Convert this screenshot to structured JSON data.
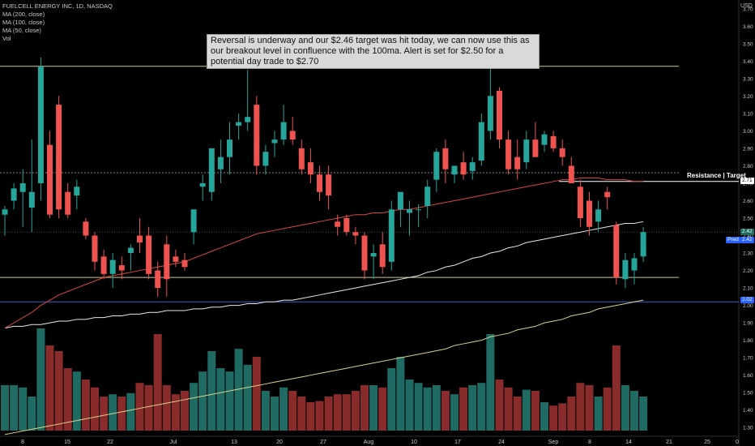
{
  "header": {
    "symbol_line": "FUELCELL ENERGY INC, 1D, NASDAQ",
    "indicators": [
      "MA (200, close)",
      "MA (100, close)",
      "MA (50, close)",
      "Vol"
    ],
    "currency": "USD"
  },
  "annotation": {
    "text": "Reversal is underway and our $2.46 target was hit today, we can now use this as our breakout level in confluence with the 100ma.  Alert is set for $2.50 for a potential day trade to $2.70"
  },
  "resistance_label": "Resistance | Target",
  "price_tags": {
    "resistance": "2.71",
    "current_a": "2.42",
    "current_b": "2.42",
    "pred": "Pred",
    "support": "2.02"
  },
  "colors": {
    "up": "#26a69a",
    "down": "#ef5350",
    "up_vol": "#1f6b63",
    "down_vol": "#8a2b2b",
    "ma50": "#d8473f",
    "ma100": "#e8e8e8",
    "ma200": "#d8d28a",
    "level_top": "#cfc77a",
    "level_support": "#cfc77a",
    "level_blue": "#3b62c4"
  },
  "chart_data": {
    "type": "candlestick",
    "title": "FUELCELL ENERGY INC, 1D, NASDAQ",
    "ylim": [
      1.25,
      3.75
    ],
    "y_ticks": [
      1.3,
      1.4,
      1.5,
      1.6,
      1.7,
      1.8,
      1.9,
      2.0,
      2.1,
      2.2,
      2.3,
      2.4,
      2.5,
      2.6,
      2.7,
      2.8,
      2.9,
      3.0,
      3.1,
      3.2,
      3.3,
      3.4,
      3.5,
      3.6,
      3.7
    ],
    "x_labels": [
      "8",
      "15",
      "22",
      "Jul",
      "13",
      "20",
      "27",
      "Aug",
      "10",
      "17",
      "24",
      "Sep",
      "8",
      "14",
      "21",
      "25",
      "0"
    ],
    "levels": {
      "top": 3.37,
      "resistance": 2.71,
      "resistance_dotted": 2.76,
      "support": 2.16,
      "blue": 2.02
    },
    "candles": [
      {
        "o": 2.52,
        "h": 2.57,
        "l": 2.4,
        "c": 2.55
      },
      {
        "o": 2.6,
        "h": 2.7,
        "l": 2.55,
        "c": 2.67
      },
      {
        "o": 2.65,
        "h": 2.78,
        "l": 2.45,
        "c": 2.7
      },
      {
        "o": 2.56,
        "h": 2.95,
        "l": 2.42,
        "c": 2.65
      },
      {
        "o": 2.7,
        "h": 3.42,
        "l": 2.6,
        "c": 3.37
      },
      {
        "o": 2.92,
        "h": 3.0,
        "l": 2.5,
        "c": 2.52
      },
      {
        "o": 3.15,
        "h": 3.2,
        "l": 2.5,
        "c": 2.55
      },
      {
        "o": 2.65,
        "h": 2.7,
        "l": 2.5,
        "c": 2.52
      },
      {
        "o": 2.63,
        "h": 2.72,
        "l": 2.55,
        "c": 2.68
      },
      {
        "o": 2.48,
        "h": 2.5,
        "l": 2.38,
        "c": 2.4
      },
      {
        "o": 2.4,
        "h": 2.42,
        "l": 2.2,
        "c": 2.25
      },
      {
        "o": 2.28,
        "h": 2.32,
        "l": 2.15,
        "c": 2.18
      },
      {
        "o": 2.18,
        "h": 2.3,
        "l": 2.1,
        "c": 2.26
      },
      {
        "o": 2.23,
        "h": 2.28,
        "l": 2.15,
        "c": 2.2
      },
      {
        "o": 2.3,
        "h": 2.35,
        "l": 2.2,
        "c": 2.33
      },
      {
        "o": 2.4,
        "h": 2.5,
        "l": 2.3,
        "c": 2.36
      },
      {
        "o": 2.4,
        "h": 2.45,
        "l": 2.15,
        "c": 2.18
      },
      {
        "o": 2.2,
        "h": 2.25,
        "l": 2.05,
        "c": 2.1
      },
      {
        "o": 2.35,
        "h": 2.4,
        "l": 2.05,
        "c": 2.15
      },
      {
        "o": 2.28,
        "h": 2.32,
        "l": 2.22,
        "c": 2.25
      },
      {
        "o": 2.26,
        "h": 2.3,
        "l": 2.2,
        "c": 2.22
      },
      {
        "o": 2.42,
        "h": 2.55,
        "l": 2.35,
        "c": 2.55
      },
      {
        "o": 2.68,
        "h": 2.75,
        "l": 2.6,
        "c": 2.7
      },
      {
        "o": 2.65,
        "h": 2.9,
        "l": 2.6,
        "c": 2.9
      },
      {
        "o": 2.78,
        "h": 2.95,
        "l": 2.7,
        "c": 2.85
      },
      {
        "o": 2.85,
        "h": 3.05,
        "l": 2.75,
        "c": 2.95
      },
      {
        "o": 3.03,
        "h": 3.1,
        "l": 2.95,
        "c": 3.05
      },
      {
        "o": 3.05,
        "h": 3.35,
        "l": 3.0,
        "c": 3.08
      },
      {
        "o": 3.15,
        "h": 3.2,
        "l": 2.75,
        "c": 2.8
      },
      {
        "o": 2.8,
        "h": 2.92,
        "l": 2.75,
        "c": 2.88
      },
      {
        "o": 2.93,
        "h": 3.0,
        "l": 2.85,
        "c": 2.95
      },
      {
        "o": 2.95,
        "h": 3.15,
        "l": 2.92,
        "c": 3.05
      },
      {
        "o": 3.0,
        "h": 3.08,
        "l": 2.92,
        "c": 2.95
      },
      {
        "o": 2.9,
        "h": 2.95,
        "l": 2.75,
        "c": 2.78
      },
      {
        "o": 2.82,
        "h": 2.9,
        "l": 2.7,
        "c": 2.75
      },
      {
        "o": 2.75,
        "h": 2.8,
        "l": 2.6,
        "c": 2.65
      },
      {
        "o": 2.75,
        "h": 2.8,
        "l": 2.55,
        "c": 2.63
      },
      {
        "o": 2.48,
        "h": 2.52,
        "l": 2.4,
        "c": 2.45
      },
      {
        "o": 2.5,
        "h": 2.52,
        "l": 2.4,
        "c": 2.42
      },
      {
        "o": 2.42,
        "h": 2.45,
        "l": 2.35,
        "c": 2.4
      },
      {
        "o": 2.4,
        "h": 2.42,
        "l": 2.15,
        "c": 2.2
      },
      {
        "o": 2.28,
        "h": 2.35,
        "l": 2.15,
        "c": 2.3
      },
      {
        "o": 2.35,
        "h": 2.42,
        "l": 2.18,
        "c": 2.22
      },
      {
        "o": 2.25,
        "h": 2.6,
        "l": 2.2,
        "c": 2.55
      },
      {
        "o": 2.55,
        "h": 2.65,
        "l": 2.45,
        "c": 2.65
      },
      {
        "o": 2.53,
        "h": 2.6,
        "l": 2.4,
        "c": 2.55
      },
      {
        "o": 2.55,
        "h": 2.58,
        "l": 2.45,
        "c": 2.55
      },
      {
        "o": 2.57,
        "h": 2.72,
        "l": 2.5,
        "c": 2.68
      },
      {
        "o": 2.72,
        "h": 2.9,
        "l": 2.65,
        "c": 2.88
      },
      {
        "o": 2.9,
        "h": 2.95,
        "l": 2.7,
        "c": 2.78
      },
      {
        "o": 2.75,
        "h": 2.8,
        "l": 2.7,
        "c": 2.8
      },
      {
        "o": 2.82,
        "h": 2.88,
        "l": 2.72,
        "c": 2.75
      },
      {
        "o": 2.77,
        "h": 2.85,
        "l": 2.72,
        "c": 2.82
      },
      {
        "o": 2.83,
        "h": 3.1,
        "l": 2.8,
        "c": 3.05
      },
      {
        "o": 3.0,
        "h": 3.38,
        "l": 2.95,
        "c": 3.2
      },
      {
        "o": 3.23,
        "h": 3.25,
        "l": 2.9,
        "c": 2.95
      },
      {
        "o": 2.95,
        "h": 3.0,
        "l": 2.75,
        "c": 2.78
      },
      {
        "o": 2.85,
        "h": 2.95,
        "l": 2.72,
        "c": 2.78
      },
      {
        "o": 2.82,
        "h": 3.0,
        "l": 2.78,
        "c": 2.95
      },
      {
        "o": 2.95,
        "h": 3.05,
        "l": 2.85,
        "c": 2.85
      },
      {
        "o": 2.92,
        "h": 3.0,
        "l": 2.88,
        "c": 2.98
      },
      {
        "o": 2.97,
        "h": 3.0,
        "l": 2.88,
        "c": 2.9
      },
      {
        "o": 2.9,
        "h": 2.95,
        "l": 2.8,
        "c": 2.85
      },
      {
        "o": 2.8,
        "h": 2.85,
        "l": 2.7,
        "c": 2.7
      },
      {
        "o": 2.68,
        "h": 2.72,
        "l": 2.45,
        "c": 2.5
      },
      {
        "o": 2.6,
        "h": 2.65,
        "l": 2.4,
        "c": 2.45
      },
      {
        "o": 2.48,
        "h": 2.6,
        "l": 2.42,
        "c": 2.55
      },
      {
        "o": 2.65,
        "h": 2.68,
        "l": 2.55,
        "c": 2.62
      },
      {
        "o": 2.46,
        "h": 2.48,
        "l": 2.12,
        "c": 2.16
      },
      {
        "o": 2.15,
        "h": 2.3,
        "l": 2.1,
        "c": 2.26
      },
      {
        "o": 2.2,
        "h": 2.3,
        "l": 2.12,
        "c": 2.27
      },
      {
        "o": 2.28,
        "h": 2.45,
        "l": 2.25,
        "c": 2.42
      }
    ],
    "volume": [
      0.4,
      0.4,
      0.38,
      0.3,
      0.9,
      0.75,
      0.7,
      0.55,
      0.52,
      0.45,
      0.38,
      0.3,
      0.32,
      0.3,
      0.33,
      0.42,
      0.4,
      0.85,
      0.4,
      0.32,
      0.35,
      0.42,
      0.52,
      0.7,
      0.55,
      0.52,
      0.72,
      0.58,
      0.65,
      0.35,
      0.3,
      0.38,
      0.35,
      0.3,
      0.25,
      0.26,
      0.3,
      0.32,
      0.32,
      0.35,
      0.4,
      0.4,
      0.38,
      0.55,
      0.65,
      0.45,
      0.42,
      0.38,
      0.4,
      0.35,
      0.32,
      0.38,
      0.4,
      0.42,
      0.85,
      0.45,
      0.38,
      0.3,
      0.36,
      0.35,
      0.25,
      0.22,
      0.24,
      0.3,
      0.42,
      0.4,
      0.3,
      0.38,
      0.75,
      0.4,
      0.35,
      0.3
    ],
    "ma50": [
      1.87,
      1.9,
      1.93,
      1.96,
      2.0,
      2.03,
      2.06,
      2.08,
      2.1,
      2.12,
      2.14,
      2.16,
      2.17,
      2.18,
      2.19,
      2.2,
      2.21,
      2.22,
      2.23,
      2.24,
      2.25,
      2.27,
      2.29,
      2.31,
      2.33,
      2.35,
      2.37,
      2.39,
      2.41,
      2.42,
      2.43,
      2.44,
      2.45,
      2.46,
      2.47,
      2.48,
      2.49,
      2.5,
      2.51,
      2.52,
      2.52,
      2.53,
      2.53,
      2.54,
      2.55,
      2.55,
      2.56,
      2.57,
      2.58,
      2.59,
      2.6,
      2.61,
      2.62,
      2.63,
      2.64,
      2.65,
      2.66,
      2.67,
      2.68,
      2.69,
      2.7,
      2.71,
      2.72,
      2.72,
      2.73,
      2.73,
      2.73,
      2.72,
      2.72,
      2.72,
      2.71,
      2.71
    ],
    "ma100": [
      1.87,
      1.88,
      1.88,
      1.89,
      1.89,
      1.9,
      1.91,
      1.91,
      1.92,
      1.92,
      1.93,
      1.93,
      1.94,
      1.94,
      1.95,
      1.95,
      1.96,
      1.96,
      1.97,
      1.97,
      1.97,
      1.98,
      1.98,
      1.99,
      1.99,
      2.0,
      2.0,
      2.01,
      2.01,
      2.02,
      2.02,
      2.03,
      2.03,
      2.04,
      2.05,
      2.06,
      2.07,
      2.08,
      2.09,
      2.1,
      2.11,
      2.12,
      2.13,
      2.14,
      2.15,
      2.16,
      2.17,
      2.19,
      2.2,
      2.22,
      2.23,
      2.25,
      2.27,
      2.28,
      2.3,
      2.31,
      2.33,
      2.34,
      2.36,
      2.37,
      2.38,
      2.39,
      2.4,
      2.41,
      2.42,
      2.43,
      2.44,
      2.45,
      2.46,
      2.47,
      2.47,
      2.48
    ],
    "ma200": [
      1.26,
      1.27,
      1.28,
      1.29,
      1.3,
      1.31,
      1.32,
      1.33,
      1.34,
      1.35,
      1.36,
      1.37,
      1.38,
      1.39,
      1.4,
      1.41,
      1.42,
      1.43,
      1.44,
      1.45,
      1.46,
      1.47,
      1.48,
      1.49,
      1.5,
      1.51,
      1.52,
      1.53,
      1.54,
      1.55,
      1.56,
      1.57,
      1.58,
      1.59,
      1.6,
      1.61,
      1.62,
      1.63,
      1.64,
      1.65,
      1.66,
      1.67,
      1.68,
      1.69,
      1.7,
      1.71,
      1.72,
      1.73,
      1.74,
      1.75,
      1.77,
      1.78,
      1.79,
      1.8,
      1.82,
      1.83,
      1.84,
      1.86,
      1.87,
      1.88,
      1.9,
      1.91,
      1.92,
      1.94,
      1.95,
      1.96,
      1.98,
      1.99,
      2.0,
      2.01,
      2.02,
      2.03
    ]
  }
}
